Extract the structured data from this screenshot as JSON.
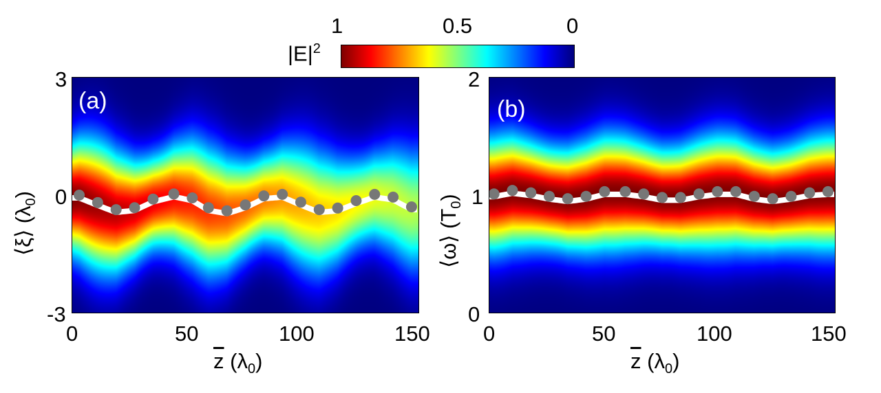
{
  "colorbar": {
    "label": "|E|",
    "label_sup": "2",
    "ticks": [
      "1",
      "0.5",
      "0"
    ],
    "colormap": "jet",
    "range": [
      1,
      0
    ]
  },
  "chart_data": [
    {
      "type": "heatmap",
      "panel_label": "(a)",
      "xlabel_var": "z",
      "xlabel_unit": "λ",
      "xlabel_sub": "0",
      "ylabel_var": "⟨ξ⟩",
      "ylabel_unit": "λ",
      "ylabel_sub": "0",
      "xlim": [
        0,
        150
      ],
      "ylim": [
        -3,
        3
      ],
      "xticks": [
        "0",
        "50",
        "100",
        "150"
      ],
      "yticks": [
        "3",
        "0",
        "-3"
      ],
      "markers": {
        "color": "#777777",
        "x": [
          3,
          11,
          19,
          27,
          35,
          44,
          52,
          59,
          67,
          75,
          83,
          91,
          99,
          107,
          115,
          123,
          131,
          139,
          147
        ],
        "y": [
          0.0,
          -0.19,
          -0.37,
          -0.32,
          -0.1,
          0.03,
          -0.07,
          -0.32,
          -0.4,
          -0.25,
          -0.02,
          0.02,
          -0.18,
          -0.37,
          -0.33,
          -0.14,
          0.02,
          -0.05,
          -0.3
        ]
      },
      "line_color": "#ffffff"
    },
    {
      "type": "heatmap",
      "panel_label": "(b)",
      "xlabel_var": "z",
      "xlabel_unit": "λ",
      "xlabel_sub": "0",
      "ylabel_var": "⟨ω⟩",
      "ylabel_unit": "T",
      "ylabel_sub": "0",
      "xlim": [
        0,
        150
      ],
      "ylim": [
        0,
        2
      ],
      "xticks": [
        "0",
        "50",
        "100",
        "150"
      ],
      "yticks": [
        "2",
        "1",
        "0"
      ],
      "markers": {
        "color": "#777777",
        "x": [
          2,
          10,
          18,
          26,
          34,
          42,
          50,
          59,
          67,
          75,
          83,
          91,
          99,
          107,
          115,
          123,
          131,
          139,
          147
        ],
        "y": [
          1.01,
          1.04,
          1.02,
          0.99,
          0.97,
          0.99,
          1.03,
          1.03,
          1.01,
          0.98,
          0.98,
          1.01,
          1.03,
          1.03,
          0.99,
          0.97,
          0.99,
          1.02,
          1.03
        ]
      },
      "line_color": "#ffffff"
    }
  ]
}
